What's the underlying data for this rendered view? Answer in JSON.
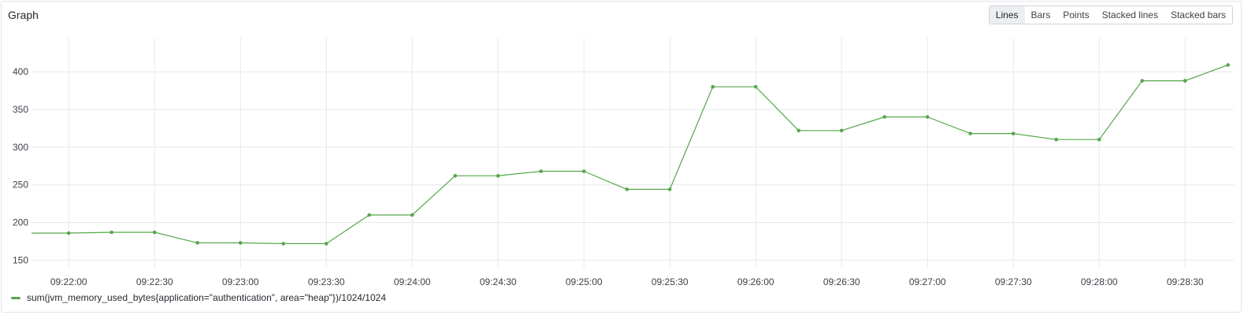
{
  "panel": {
    "title": "Graph",
    "display_modes": [
      {
        "label": "Lines",
        "active": true
      },
      {
        "label": "Bars",
        "active": false
      },
      {
        "label": "Points",
        "active": false
      },
      {
        "label": "Stacked lines",
        "active": false
      },
      {
        "label": "Stacked bars",
        "active": false
      }
    ]
  },
  "colors": {
    "series": "#56a64b",
    "grid": "#e6e8eb",
    "axis_text": "#3c4148"
  },
  "chart_data": {
    "type": "line",
    "title": "",
    "xlabel": "",
    "ylabel": "",
    "x_time_seconds_of_day_range": [
      "09:21:47",
      "09:28:47"
    ],
    "x_ticks": [
      "09:22:00",
      "09:22:30",
      "09:23:00",
      "09:23:30",
      "09:24:00",
      "09:24:30",
      "09:25:00",
      "09:25:30",
      "09:26:00",
      "09:26:30",
      "09:27:00",
      "09:27:30",
      "09:28:00",
      "09:28:30"
    ],
    "y_ticks": [
      150,
      200,
      250,
      300,
      350,
      400
    ],
    "ylim": [
      140,
      445
    ],
    "grid": true,
    "legend_position": "bottom-left",
    "series": [
      {
        "name": "sum(jvm_memory_used_bytes{application=\"authentication\", area=\"heap\"})/1024/1024",
        "points": [
          {
            "t": "09:21:47",
            "v": 186
          },
          {
            "t": "09:22:00",
            "v": 186
          },
          {
            "t": "09:22:15",
            "v": 187
          },
          {
            "t": "09:22:30",
            "v": 187
          },
          {
            "t": "09:22:45",
            "v": 173
          },
          {
            "t": "09:23:00",
            "v": 173
          },
          {
            "t": "09:23:15",
            "v": 172
          },
          {
            "t": "09:23:30",
            "v": 172
          },
          {
            "t": "09:23:45",
            "v": 210
          },
          {
            "t": "09:24:00",
            "v": 210
          },
          {
            "t": "09:24:15",
            "v": 262
          },
          {
            "t": "09:24:30",
            "v": 262
          },
          {
            "t": "09:24:45",
            "v": 268
          },
          {
            "t": "09:25:00",
            "v": 268
          },
          {
            "t": "09:25:15",
            "v": 244
          },
          {
            "t": "09:25:30",
            "v": 244
          },
          {
            "t": "09:25:45",
            "v": 380
          },
          {
            "t": "09:26:00",
            "v": 380
          },
          {
            "t": "09:26:15",
            "v": 322
          },
          {
            "t": "09:26:30",
            "v": 322
          },
          {
            "t": "09:26:45",
            "v": 340
          },
          {
            "t": "09:27:00",
            "v": 340
          },
          {
            "t": "09:27:15",
            "v": 318
          },
          {
            "t": "09:27:30",
            "v": 318
          },
          {
            "t": "09:27:45",
            "v": 310
          },
          {
            "t": "09:28:00",
            "v": 310
          },
          {
            "t": "09:28:15",
            "v": 388
          },
          {
            "t": "09:28:30",
            "v": 388
          },
          {
            "t": "09:28:45",
            "v": 409
          }
        ]
      }
    ]
  }
}
